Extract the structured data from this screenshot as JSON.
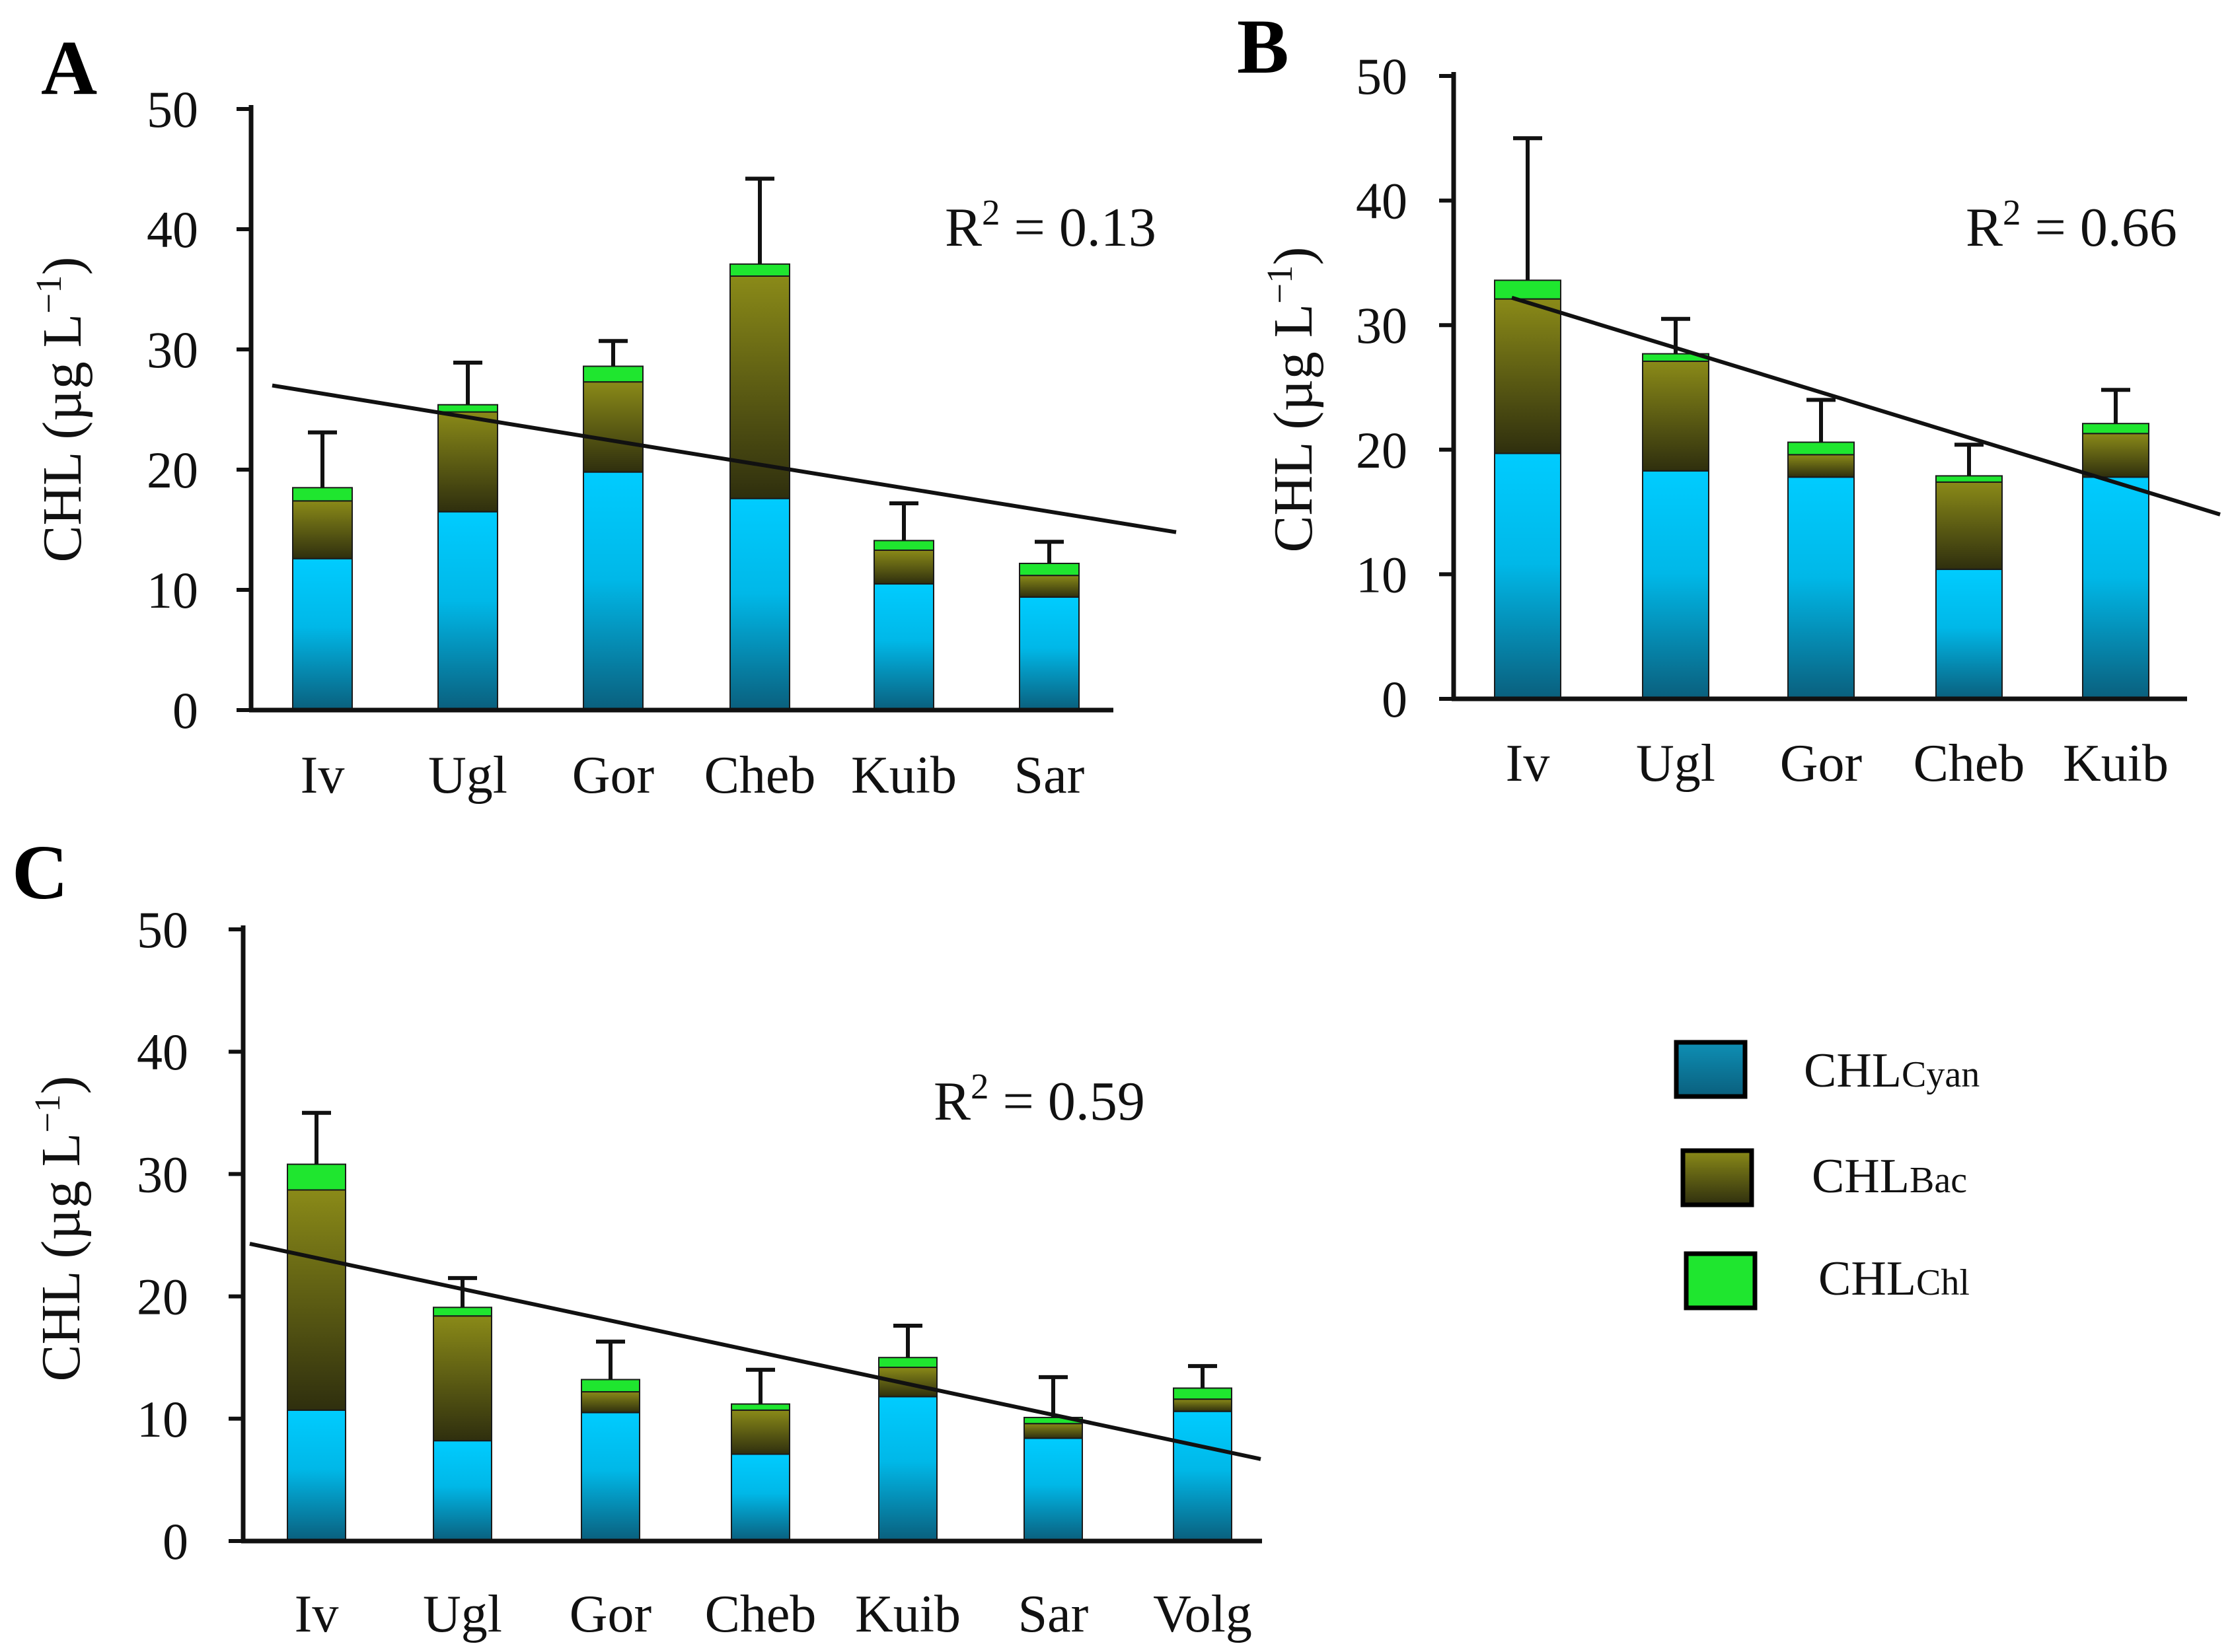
{
  "colors": {
    "cyan_top": "#00CCFF",
    "cyan_bottom": "#0A5F7D",
    "bac_top": "#8A8A18",
    "bac_bottom": "#2F2F0E",
    "chl": "#1FE62F",
    "axis": "#111111",
    "trend": "#111111"
  },
  "legend": {
    "items": [
      {
        "main": "CHL",
        "sub": "Cyan",
        "swatch": "cyan-gradient"
      },
      {
        "main": "CHL",
        "sub": "Bac",
        "swatch": "bac-gradient"
      },
      {
        "main": "CHL",
        "sub": "Chl",
        "swatch": "chl-flat"
      }
    ]
  },
  "chart_data": [
    {
      "panel": "A",
      "type": "bar",
      "stacked": true,
      "title": "",
      "xlabel": "",
      "ylabel": {
        "main": "CHL (µg L",
        "sup": "−1",
        "close": ")"
      },
      "ylim": [
        0,
        50
      ],
      "yticks": [
        0,
        10,
        20,
        30,
        40,
        50
      ],
      "categories": [
        "Iv",
        "Ugl",
        "Gor",
        "Cheb",
        "Kuib",
        "Sar"
      ],
      "series": [
        {
          "name": "CHLCyan",
          "values": [
            12.6,
            16.5,
            19.8,
            17.6,
            10.5,
            9.4
          ]
        },
        {
          "name": "CHLBac",
          "values": [
            4.8,
            8.3,
            7.5,
            18.5,
            2.8,
            1.8
          ]
        },
        {
          "name": "CHLChl",
          "values": [
            1.1,
            0.6,
            1.3,
            1.0,
            0.8,
            1.0
          ]
        }
      ],
      "error_top": [
        23.1,
        28.9,
        30.7,
        44.2,
        17.2,
        14.0
      ],
      "trend": {
        "start": 27.0,
        "end": 14.8
      },
      "annotation": {
        "main": "R",
        "sup": "2",
        "rest": " = 0.13"
      }
    },
    {
      "panel": "B",
      "type": "bar",
      "stacked": true,
      "title": "",
      "xlabel": "",
      "ylabel": {
        "main": "CHL (µg L",
        "sup": "−1",
        "close": ")"
      },
      "ylim": [
        0,
        50
      ],
      "yticks": [
        0,
        10,
        20,
        30,
        40,
        50
      ],
      "categories": [
        "Iv",
        "Ugl",
        "Gor",
        "Cheb",
        "Kuib"
      ],
      "series": [
        {
          "name": "CHLCyan",
          "values": [
            19.7,
            18.3,
            17.8,
            10.4,
            17.8
          ]
        },
        {
          "name": "CHLBac",
          "values": [
            12.4,
            8.8,
            1.8,
            7.0,
            3.5
          ]
        },
        {
          "name": "CHLChl",
          "values": [
            1.5,
            0.6,
            1.0,
            0.5,
            0.8
          ]
        }
      ],
      "error_top": [
        45.0,
        30.5,
        24.0,
        20.4,
        24.8
      ],
      "trend": {
        "start": 32.2,
        "end": 14.8
      },
      "annotation": {
        "main": "R",
        "sup": "2",
        "rest": " = 0.66"
      }
    },
    {
      "panel": "C",
      "type": "bar",
      "stacked": true,
      "title": "",
      "xlabel": "",
      "ylabel": {
        "main": "CHL (µg L",
        "sup": "−1",
        "close": ")"
      },
      "ylim": [
        0,
        50
      ],
      "yticks": [
        0,
        10,
        20,
        30,
        40,
        50
      ],
      "categories": [
        "Iv",
        "Ugl",
        "Gor",
        "Cheb",
        "Kuib",
        "Sar",
        "Volg"
      ],
      "series": [
        {
          "name": "CHLCyan",
          "values": [
            10.7,
            8.2,
            10.5,
            7.1,
            11.8,
            8.4,
            10.6
          ]
        },
        {
          "name": "CHLBac",
          "values": [
            18.0,
            10.2,
            1.7,
            3.6,
            2.4,
            1.2,
            1.0
          ]
        },
        {
          "name": "CHLChl",
          "values": [
            2.1,
            0.7,
            1.0,
            0.5,
            0.8,
            0.5,
            0.9
          ]
        }
      ],
      "error_top": [
        35.0,
        21.5,
        16.3,
        14.0,
        17.6,
        13.4,
        14.3
      ],
      "trend": {
        "start": 24.3,
        "end": 6.7
      },
      "annotation": {
        "main": "R",
        "sup": "2",
        "rest": " = 0.59"
      }
    }
  ]
}
